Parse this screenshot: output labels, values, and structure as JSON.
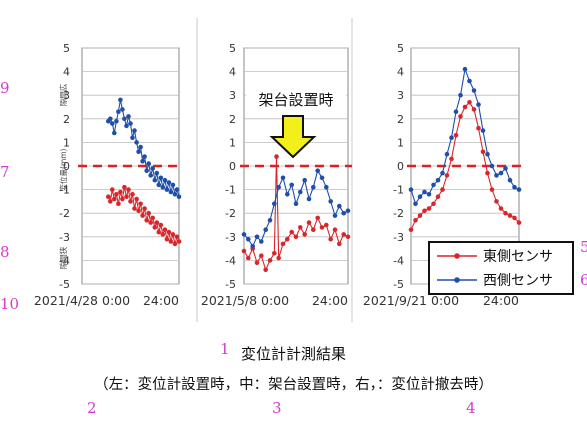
{
  "figure": {
    "title": "変位計計測結果",
    "subtitle": "（左：変位計設置時，中：架台設置時，右，：変位計撤去時）",
    "markers": [
      "1",
      "2",
      "3",
      "4",
      "3",
      "9",
      "7",
      "8",
      "10",
      "5",
      "6"
    ]
  },
  "chart_data": [
    {
      "type": "line",
      "panel": "left",
      "x_start_label": "2021/4/28 0:00",
      "x_end_label": "24:00",
      "yticks": [
        "5",
        "4",
        "3",
        "2",
        "1",
        "0",
        "-1",
        "-2",
        "-3",
        "-4",
        "-5"
      ],
      "ylim": [
        -5,
        5
      ],
      "grid": true,
      "y_labels": [
        "隙間広",
        "変位量(mm)",
        "隙間狭"
      ],
      "reference_line": 0,
      "series": [
        {
          "color": "#d9262b",
          "x": [
            6.5,
            7,
            7.5,
            8,
            8.5,
            9,
            9.5,
            10,
            10.5,
            11,
            11.5,
            12,
            12.5,
            13,
            13.5,
            14,
            14.5,
            15,
            15.5,
            16,
            16.5,
            17,
            17.5,
            18,
            18.5,
            19,
            19.5,
            20,
            20.5,
            21,
            21.5,
            22,
            22.5,
            23,
            23.5,
            24
          ],
          "values": [
            -1.3,
            -1.5,
            -1.0,
            -1.4,
            -1.2,
            -1.6,
            -1.1,
            -1.4,
            -0.9,
            -1.3,
            -1.0,
            -1.5,
            -1.2,
            -1.8,
            -1.4,
            -1.9,
            -1.6,
            -2.1,
            -1.8,
            -2.3,
            -2.0,
            -2.4,
            -2.2,
            -2.6,
            -2.4,
            -2.8,
            -2.5,
            -2.9,
            -2.7,
            -3.1,
            -2.8,
            -3.2,
            -2.9,
            -3.3,
            -3.0,
            -3.2
          ]
        },
        {
          "color": "#1f4faa",
          "x": [
            6.5,
            7,
            7.5,
            8,
            8.5,
            9,
            9.5,
            10,
            10.5,
            11,
            11.5,
            12,
            12.5,
            13,
            13.5,
            14,
            14.5,
            15,
            15.5,
            16,
            16.5,
            17,
            17.5,
            18,
            18.5,
            19,
            19.5,
            20,
            20.5,
            21,
            21.5,
            22,
            22.5,
            23,
            23.5,
            24
          ],
          "values": [
            1.9,
            2.0,
            1.8,
            1.4,
            1.9,
            2.3,
            2.8,
            2.4,
            2.0,
            1.7,
            2.1,
            1.8,
            1.2,
            1.5,
            1.0,
            0.6,
            0.8,
            0.2,
            0.4,
            -0.2,
            0.1,
            -0.4,
            -0.1,
            -0.6,
            -0.3,
            -0.8,
            -0.5,
            -0.9,
            -0.6,
            -1.0,
            -0.7,
            -1.1,
            -0.8,
            -1.2,
            -1.0,
            -1.3
          ]
        }
      ]
    },
    {
      "type": "line",
      "panel": "center",
      "x_start_label": "2021/5/8 0:00",
      "x_end_label": "24:00",
      "yticks": [
        "5",
        "4",
        "3",
        "2",
        "1",
        "0",
        "-1",
        "-2",
        "-3",
        "-4",
        "-5"
      ],
      "ylim": [
        -5,
        5
      ],
      "grid": true,
      "reference_line": 0,
      "annotation": "架台設置時",
      "series": [
        {
          "color": "#d9262b",
          "x": [
            0,
            1,
            2,
            3,
            4,
            5,
            6,
            7,
            7.5,
            8,
            9,
            10,
            11,
            12,
            13,
            14,
            15,
            16,
            17,
            18,
            19,
            20,
            21,
            22,
            23,
            24
          ],
          "values": [
            -3.6,
            -3.9,
            -3.5,
            -4.1,
            -3.8,
            -4.4,
            -4.0,
            -3.7,
            0.4,
            -3.9,
            -3.3,
            -3.1,
            -2.8,
            -3.0,
            -2.6,
            -2.9,
            -2.4,
            -2.7,
            -2.2,
            -2.6,
            -2.5,
            -3.1,
            -2.7,
            -3.3,
            -2.9,
            -3.0
          ]
        },
        {
          "color": "#1f4faa",
          "x": [
            0,
            1,
            2,
            3,
            4,
            5,
            6,
            7,
            8,
            9,
            10,
            11,
            12,
            13,
            14,
            15,
            16,
            17,
            18,
            19,
            20,
            21,
            22,
            23,
            24
          ],
          "values": [
            -2.9,
            -3.1,
            -3.4,
            -3.0,
            -3.2,
            -2.7,
            -2.3,
            -1.6,
            -0.9,
            -0.5,
            -1.2,
            -0.8,
            -1.6,
            -1.1,
            -0.6,
            -1.4,
            -0.9,
            -0.2,
            -0.5,
            -0.9,
            -1.5,
            -2.1,
            -1.7,
            -2.0,
            -1.9
          ]
        }
      ]
    },
    {
      "type": "line",
      "panel": "right",
      "x_start_label": "2021/9/21 0:00",
      "x_end_label": "24:00",
      "yticks": [
        "5",
        "4",
        "3",
        "2",
        "1",
        "0",
        "-1",
        "-2",
        "-3",
        "-4",
        "-5"
      ],
      "ylim": [
        -5,
        5
      ],
      "grid": true,
      "reference_line": 0,
      "legend_position": "bottom-right",
      "series": [
        {
          "name": "東側センサ",
          "color": "#d9262b",
          "x": [
            0,
            1,
            2,
            3,
            4,
            5,
            6,
            7,
            8,
            9,
            10,
            11,
            12,
            13,
            14,
            15,
            16,
            17,
            18,
            19,
            20,
            21,
            22,
            23,
            24
          ],
          "values": [
            -2.7,
            -2.3,
            -2.1,
            -1.9,
            -1.8,
            -1.6,
            -1.3,
            -1.0,
            -0.4,
            0.3,
            1.3,
            2.1,
            2.5,
            2.7,
            2.4,
            1.6,
            0.6,
            -0.3,
            -1.0,
            -1.5,
            -1.8,
            -2.0,
            -2.1,
            -2.2,
            -2.4
          ]
        },
        {
          "name": "西側センサ",
          "color": "#1f4faa",
          "x": [
            0,
            1,
            2,
            3,
            4,
            5,
            6,
            7,
            8,
            9,
            10,
            11,
            12,
            13,
            14,
            15,
            16,
            17,
            18,
            19,
            20,
            21,
            22,
            23,
            24
          ],
          "values": [
            -1.0,
            -1.6,
            -1.3,
            -1.1,
            -1.2,
            -0.8,
            -0.6,
            -0.3,
            0.5,
            1.2,
            2.3,
            3.0,
            4.1,
            3.6,
            3.2,
            2.6,
            1.5,
            0.5,
            0.0,
            -0.4,
            -0.3,
            -0.1,
            -0.6,
            -0.9,
            -1.0
          ]
        }
      ]
    }
  ]
}
